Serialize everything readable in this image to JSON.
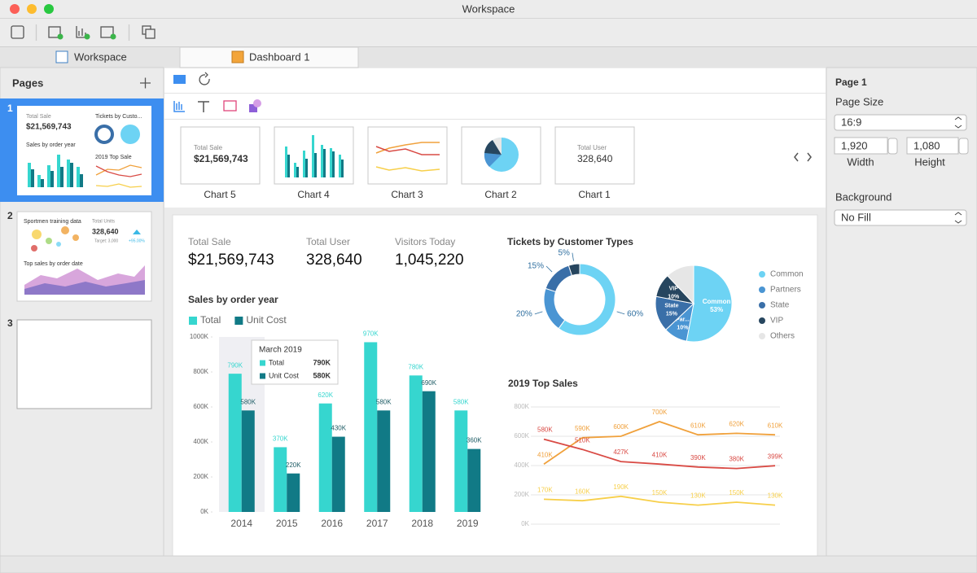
{
  "window": {
    "title": "Workspace"
  },
  "tabs": [
    "Workspace",
    "Dashboard 1"
  ],
  "pages_panel": {
    "title": "Pages",
    "pages": [
      {
        "number": 1,
        "thumbnail": [
          "Total Sale",
          "$21,569,743",
          "Tickets by Custo...",
          "Sales by order year",
          "2019 Top Sale"
        ]
      },
      {
        "number": 2,
        "thumbnail": [
          "Sportmen training data",
          "Total Units",
          "328,640",
          "Target: 3,000",
          "+95.00%",
          "Top sales by order date"
        ]
      },
      {
        "number": 3
      }
    ]
  },
  "gallery": [
    {
      "label": "Chart 5",
      "title": "Total Sale",
      "value": "$21,569,743"
    },
    {
      "label": "Chart 4"
    },
    {
      "label": "Chart 3"
    },
    {
      "label": "Chart 2"
    },
    {
      "label": "Chart 1",
      "title": "Total User",
      "value": "328,640"
    }
  ],
  "properties": {
    "title": "Page 1",
    "page_size_label": "Page Size",
    "page_size": "16:9",
    "width": "1,920",
    "width_label": "Width",
    "height": "1,080",
    "height_label": "Height",
    "background_label": "Background",
    "background": "No Fill"
  },
  "kpis": [
    {
      "label": "Total Sale",
      "value": "$21,569,743"
    },
    {
      "label": "Total User",
      "value": "328,640"
    },
    {
      "label": "Visitors Today",
      "value": "1,045,220"
    }
  ],
  "chart_data": [
    {
      "type": "bar",
      "title": "Sales by order year",
      "categories": [
        "2014",
        "2015",
        "2016",
        "2017",
        "2018",
        "2019"
      ],
      "series": [
        {
          "name": "Total",
          "color": "#36d6cf",
          "values": [
            790000,
            370000,
            620000,
            970000,
            780000,
            580000
          ],
          "value_labels": [
            "790K",
            "370K",
            "620K",
            "970K",
            "780K",
            "580K"
          ]
        },
        {
          "name": "Unit Cost",
          "color": "#117a86",
          "values": [
            580000,
            220000,
            430000,
            580000,
            690000,
            360000
          ],
          "value_labels": [
            "580K",
            "220K",
            "430K",
            "580K",
            "690K",
            "360K"
          ]
        }
      ],
      "ylim": [
        0,
        1000000
      ],
      "yticks": [
        {
          "value": 0,
          "label": "0K"
        },
        {
          "value": 200000,
          "label": "200K"
        },
        {
          "value": 400000,
          "label": "400K"
        },
        {
          "value": 600000,
          "label": "600K"
        },
        {
          "value": 800000,
          "label": "800K"
        },
        {
          "value": 1000000,
          "label": "1000K"
        }
      ],
      "tooltip": {
        "title": "March 2019",
        "rows": [
          {
            "name": "Total",
            "value": "790K"
          },
          {
            "name": "Unit Cost",
            "value": "580K"
          }
        ]
      }
    },
    {
      "type": "donut",
      "title": "Tickets by Customer Types",
      "values": [
        60,
        20,
        15,
        5
      ],
      "value_labels": [
        "60%",
        "20%",
        "15%",
        "5%"
      ],
      "colors": [
        "#6dd3f4",
        "#4a95d3",
        "#3a6fa8",
        "#27465f"
      ]
    },
    {
      "type": "pie",
      "categories": [
        "Common",
        "Partners",
        "State",
        "VIP",
        "Others"
      ],
      "slice_labels": [
        "Common",
        "Par...",
        "State",
        "VIP",
        null
      ],
      "values": [
        53,
        10,
        15,
        10,
        12
      ],
      "value_labels": [
        "53%",
        "10%",
        "15%",
        "10%",
        null
      ],
      "colors": [
        "#6dd3f4",
        "#4a95d3",
        "#3a6fa8",
        "#27465f",
        "#e6e6e6"
      ]
    },
    {
      "type": "line",
      "title": "2019 Top Sales",
      "categories": [
        null,
        null,
        null,
        null,
        null,
        null,
        null
      ],
      "series": [
        {
          "color": "#f0a13c",
          "values": [
            410000,
            590000,
            600000,
            700000,
            610000,
            620000,
            610000
          ],
          "value_labels": [
            "410K",
            "590K",
            "600K",
            "700K",
            "610K",
            "620K",
            "610K"
          ]
        },
        {
          "color": "#d94b45",
          "values": [
            580000,
            510000,
            427000,
            410000,
            390000,
            380000,
            399000
          ],
          "value_labels": [
            "580K",
            "510K",
            "427K",
            "410K",
            "390K",
            "380K",
            "399K"
          ]
        },
        {
          "color": "#f7cf4a",
          "values": [
            170000,
            160000,
            190000,
            150000,
            130000,
            150000,
            130000
          ],
          "value_labels": [
            "170K",
            "160K",
            "190K",
            "150K",
            "130K",
            "150K",
            "130K"
          ]
        }
      ],
      "ylim": [
        0,
        800000
      ],
      "yticks": [
        {
          "value": 0,
          "label": "0K"
        },
        {
          "value": 200000,
          "label": "200K"
        },
        {
          "value": 400000,
          "label": "400K"
        },
        {
          "value": 600000,
          "label": "600K"
        },
        {
          "value": 800000,
          "label": "800K"
        }
      ],
      "grid": true
    }
  ]
}
